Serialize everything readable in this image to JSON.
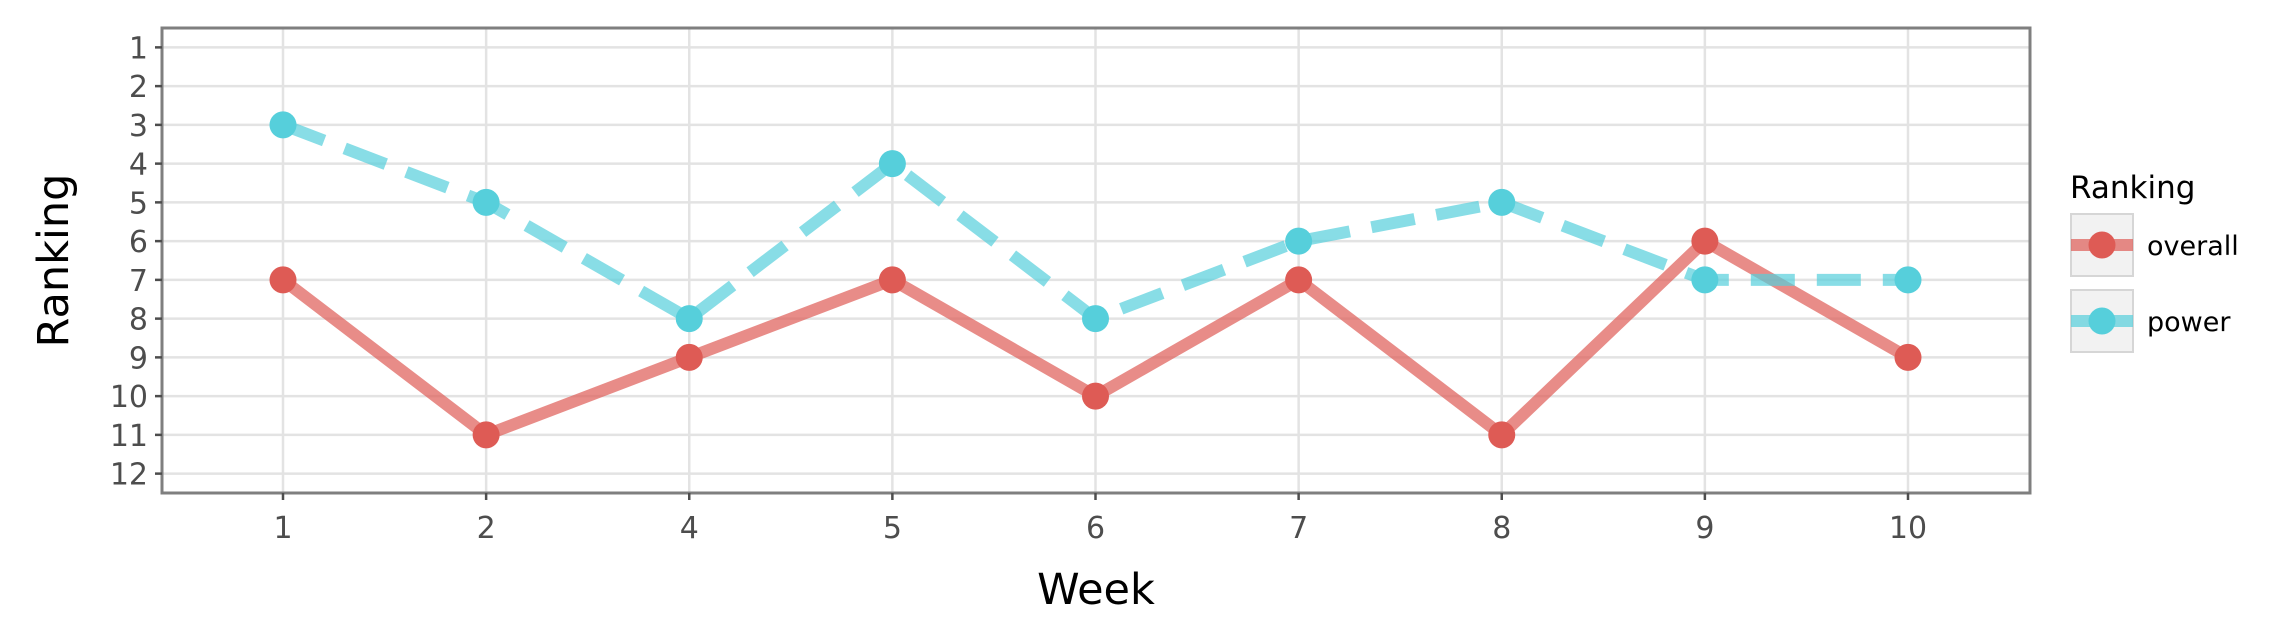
{
  "chart_data": {
    "type": "line",
    "title": "",
    "xlabel": "Week",
    "ylabel": "Ranking",
    "categories": [
      "1",
      "2",
      "4",
      "5",
      "6",
      "7",
      "8",
      "9",
      "10"
    ],
    "y_ticks": [
      "1",
      "2",
      "3",
      "4",
      "5",
      "6",
      "7",
      "8",
      "9",
      "10",
      "11",
      "12"
    ],
    "ylim": [
      0.5,
      12.5
    ],
    "y_reversed": true,
    "grid": true,
    "legend": {
      "title": "Ranking",
      "position": "right"
    },
    "series": [
      {
        "name": "overall",
        "color": "#de5b55",
        "line_style": "solid",
        "values": [
          7,
          11,
          9,
          7,
          10,
          7,
          11,
          6,
          9
        ]
      },
      {
        "name": "power",
        "color": "#56cfdb",
        "line_style": "dashed",
        "values": [
          3,
          5,
          8,
          4,
          8,
          6,
          5,
          7,
          7
        ]
      }
    ]
  }
}
